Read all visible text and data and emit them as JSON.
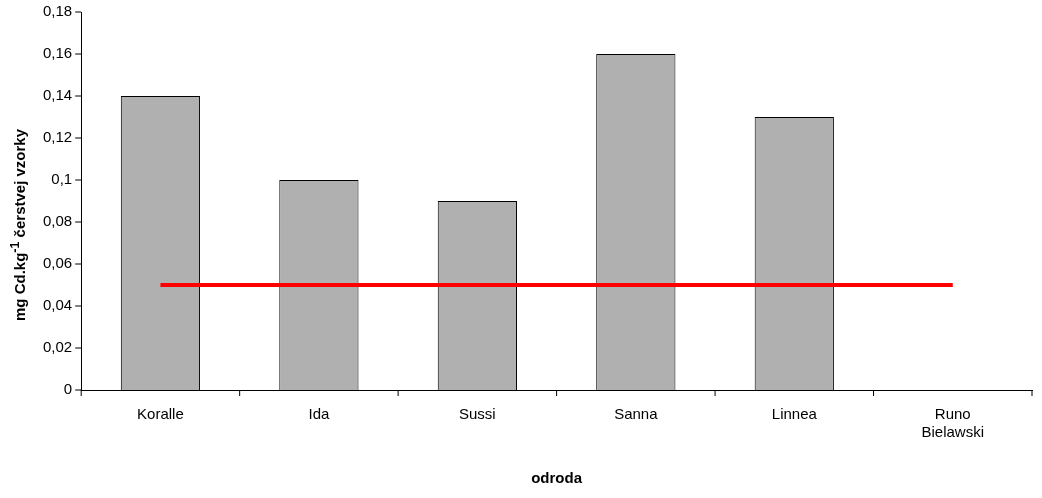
{
  "chart_data": {
    "type": "bar",
    "xlabel": "odroda",
    "ylabel": "mg Cd.kg$^{-1}$ čerstvej vzorky",
    "categories": [
      "Koralle",
      "Ida",
      "Sussi",
      "Sanna",
      "Linnea",
      "Runo Bielawski"
    ],
    "series": [
      {
        "color": "#b0b0b0",
        "values": [
          0.14,
          0.1,
          0.09,
          0.16,
          0.13,
          null
        ]
      },
      {
        "type": "line",
        "color": "#ff0000",
        "values": [
          0.05,
          0.05,
          0.05,
          0.05,
          0.05,
          0.05
        ]
      }
    ],
    "ylim": [
      0,
      0.18
    ],
    "yticks": [
      0,
      {
        "value": 0.02,
        "label": "0,02"
      },
      {
        "value": 0.04,
        "label": "0,04"
      },
      {
        "value": 0.06,
        "label": "0,06"
      },
      {
        "value": 0.08,
        "label": "0,08"
      },
      {
        "value": 0.1,
        "label": "0,1"
      },
      {
        "value": 0.12,
        "label": "0,12"
      },
      {
        "value": 0.14,
        "label": "0,14"
      },
      {
        "value": 0.16,
        "label": "0,16"
      },
      {
        "value": 0.18,
        "label": "0,18"
      }
    ],
    "grid": false,
    "legend": false,
    "marker": "none",
    "line_style": "solid"
  }
}
